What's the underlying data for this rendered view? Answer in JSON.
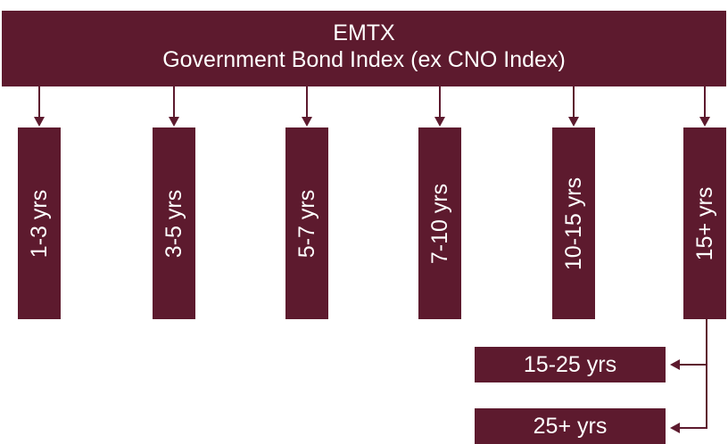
{
  "header": {
    "title": "EMTX",
    "subtitle": "Government Bond Index (ex CNO Index)"
  },
  "columns": [
    {
      "label": "1-3 yrs"
    },
    {
      "label": "3-5 yrs"
    },
    {
      "label": "5-7 yrs"
    },
    {
      "label": "7-10 yrs"
    },
    {
      "label": "10-15 yrs"
    },
    {
      "label": "15+ yrs"
    }
  ],
  "sub_items": [
    {
      "label": "15-25 yrs"
    },
    {
      "label": "25+ yrs"
    }
  ],
  "colors": {
    "box_fill": "#5d1a2e",
    "text": "#ffffff",
    "connector": "#5d1a2e"
  }
}
